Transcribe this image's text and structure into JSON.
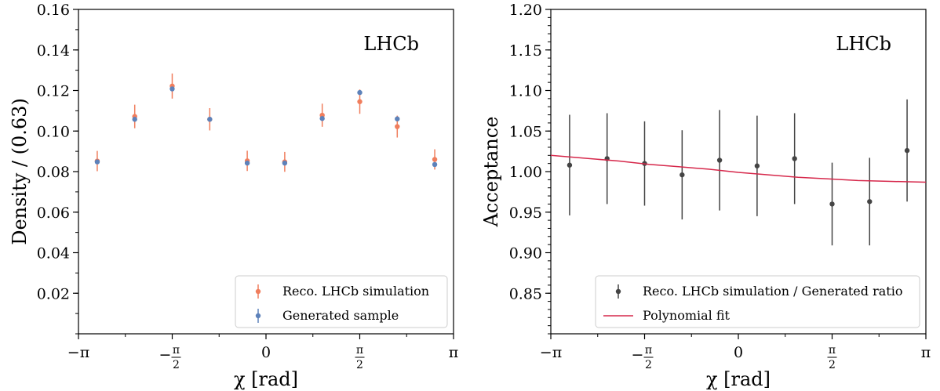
{
  "chart_data": [
    {
      "type": "scatter",
      "title": "",
      "annotation": "LHCb",
      "xlabel": "χ [rad]",
      "ylabel": "Density / (0.63)",
      "xlim": [
        -3.14159265,
        3.14159265
      ],
      "ylim": [
        0,
        0.16
      ],
      "yticks": [
        0.02,
        0.04,
        0.06,
        0.08,
        0.1,
        0.12,
        0.14,
        0.16
      ],
      "yticklabels": [
        "0.02",
        "0.04",
        "0.06",
        "0.08",
        "0.10",
        "0.12",
        "0.14",
        "0.16"
      ],
      "xticks": [
        -3.14159265,
        -1.57079633,
        0,
        1.57079633,
        3.14159265
      ],
      "xticklabels": [
        "−π",
        "−π/2",
        "0",
        "π/2",
        "π"
      ],
      "grid": false,
      "legend_position": "bottom-right",
      "series": [
        {
          "name": "Reco. LHCb simulation",
          "color": "#f07e5d",
          "x": [
            -2.827,
            -2.199,
            -1.571,
            -0.942,
            -0.314,
            0.314,
            0.942,
            1.571,
            2.199,
            2.827
          ],
          "y": [
            0.0852,
            0.1072,
            0.1222,
            0.1058,
            0.0853,
            0.0848,
            0.1078,
            0.1145,
            0.1022,
            0.086
          ],
          "yerr": [
            0.005,
            0.0058,
            0.0062,
            0.0055,
            0.005,
            0.0049,
            0.0057,
            0.006,
            0.0054,
            0.005
          ]
        },
        {
          "name": "Generated sample",
          "color": "#5d82ba",
          "x": [
            -2.827,
            -2.199,
            -1.571,
            -0.942,
            -0.314,
            0.314,
            0.942,
            1.571,
            2.199,
            2.827
          ],
          "y": [
            0.0848,
            0.1058,
            0.1208,
            0.1058,
            0.0842,
            0.0842,
            0.1062,
            0.119,
            0.106,
            0.0835
          ],
          "yerr": [
            0.0004,
            0.0004,
            0.0004,
            0.0004,
            0.0004,
            0.0004,
            0.0004,
            0.0004,
            0.0004,
            0.0004
          ]
        }
      ]
    },
    {
      "type": "scatter",
      "title": "",
      "annotation": "LHCb",
      "xlabel": "χ [rad]",
      "ylabel": "Acceptance",
      "xlim": [
        -3.14159265,
        3.14159265
      ],
      "ylim": [
        0.8,
        1.2
      ],
      "yticks": [
        0.85,
        0.9,
        0.95,
        1.0,
        1.05,
        1.1,
        1.15,
        1.2
      ],
      "yticklabels": [
        "0.85",
        "0.90",
        "0.95",
        "1.00",
        "1.05",
        "1.10",
        "1.15",
        "1.20"
      ],
      "xticks": [
        -3.14159265,
        -1.57079633,
        0,
        1.57079633,
        3.14159265
      ],
      "xticklabels": [
        "−π",
        "−π/2",
        "0",
        "π/2",
        "π"
      ],
      "grid": false,
      "legend_position": "bottom-right",
      "series": [
        {
          "name": "Reco. LHCb simulation / Generated ratio",
          "color": "#444444",
          "x": [
            -2.827,
            -2.199,
            -1.571,
            -0.942,
            -0.314,
            0.314,
            0.942,
            1.571,
            2.199,
            2.827
          ],
          "y": [
            1.008,
            1.016,
            1.01,
            0.996,
            1.014,
            1.007,
            1.016,
            0.96,
            0.963,
            1.026
          ],
          "yerr": [
            0.062,
            0.056,
            0.052,
            0.055,
            0.062,
            0.062,
            0.056,
            0.051,
            0.054,
            0.063
          ]
        },
        {
          "name": "Polynomial fit",
          "color": "#d6284b",
          "type": "line",
          "x": [
            -3.1416,
            -2.5,
            -2.0,
            -1.5,
            -1.0,
            -0.5,
            0.0,
            0.5,
            1.0,
            1.5,
            2.0,
            2.5,
            3.1416
          ],
          "y": [
            1.02,
            1.016,
            1.013,
            1.009,
            1.006,
            1.003,
            0.999,
            0.996,
            0.993,
            0.991,
            0.989,
            0.988,
            0.987
          ]
        }
      ]
    }
  ]
}
